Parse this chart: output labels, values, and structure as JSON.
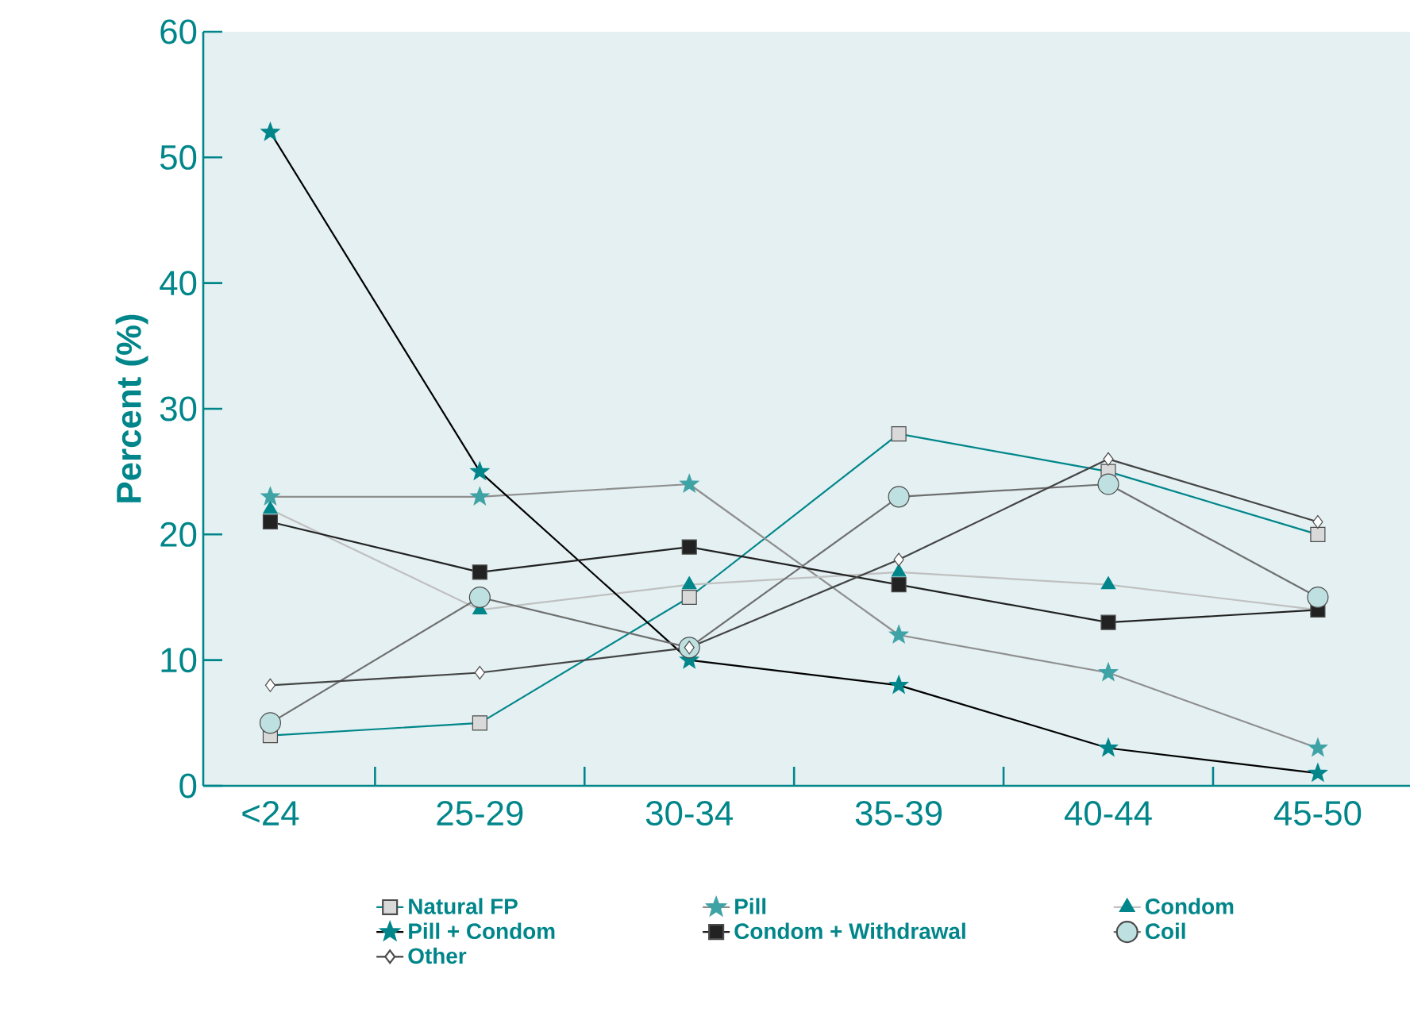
{
  "chart_data": {
    "type": "line",
    "ylabel": "Percent (%)",
    "categories": [
      "<24",
      "25-29",
      "30-34",
      "35-39",
      "40-44",
      "45-50"
    ],
    "ylim": [
      0,
      60
    ],
    "yticks": [
      0,
      10,
      20,
      30,
      40,
      50,
      60
    ],
    "legend": "bottom",
    "series": [
      {
        "name": "Natural FP",
        "color": "#00868a",
        "marker": "square",
        "colors": [
          "#d9d9d9",
          "#d9d9d9",
          "#d9d9d9",
          "#d9d9d9",
          "#d9d9d9",
          "#d9d9d9"
        ],
        "values": [
          4,
          5,
          15,
          28,
          25,
          20
        ]
      },
      {
        "name": "Pill",
        "color": "#8f8f8f",
        "marker": "star",
        "colors": [
          "#3fa3a6",
          "#3fa3a6",
          "#3fa3a6",
          "#3fa3a6",
          "#3fa3a6",
          "#3fa3a6"
        ],
        "values": [
          23,
          23,
          24,
          12,
          9,
          3
        ]
      },
      {
        "name": "Condom",
        "color": "#c0c0c0",
        "marker": "triangle",
        "colors": [
          "#00868a",
          "#00868a",
          "#00868a",
          "#00868a",
          "#00868a",
          "#00868a"
        ],
        "values": [
          22,
          14,
          16,
          17,
          16,
          14
        ]
      },
      {
        "name": "Pill + Condom",
        "color": "#000000",
        "marker": "star",
        "colors": [
          "#00868a",
          "#00868a",
          "#00868a",
          "#00868a",
          "#00868a",
          "#00868a"
        ],
        "values": [
          52,
          25,
          10,
          8,
          3,
          1
        ]
      },
      {
        "name": "Condom + Withdrawal",
        "color": "#222222",
        "marker": "square",
        "colors": [
          "#222222",
          "#222222",
          "#222222",
          "#222222",
          "#222222",
          "#222222"
        ],
        "values": [
          21,
          17,
          19,
          16,
          13,
          14
        ]
      },
      {
        "name": "Coil",
        "color": "#6f6f6f",
        "marker": "circle",
        "colors": [
          "#bfe0e1",
          "#bfe0e1",
          "#bfe0e1",
          "#bfe0e1",
          "#bfe0e1",
          "#bfe0e1"
        ],
        "values": [
          5,
          15,
          11,
          23,
          24,
          15
        ]
      },
      {
        "name": "Other",
        "color": "#444444",
        "marker": "diamond",
        "colors": [
          "#ffffff",
          "#ffffff",
          "#ffffff",
          "#ffffff",
          "#ffffff",
          "#ffffff"
        ],
        "values": [
          8,
          9,
          11,
          18,
          26,
          21
        ]
      }
    ]
  }
}
